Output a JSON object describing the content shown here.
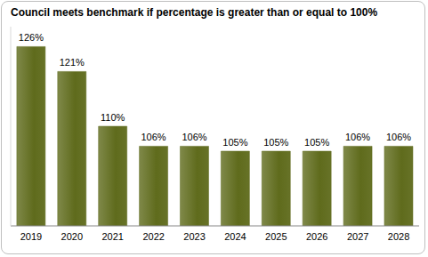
{
  "chart_data": {
    "type": "bar",
    "title": "Council meets benchmark if percentage is greater than or equal to 100%",
    "categories": [
      "2019",
      "2020",
      "2021",
      "2022",
      "2023",
      "2024",
      "2025",
      "2026",
      "2027",
      "2028"
    ],
    "values": [
      126,
      121,
      110,
      106,
      106,
      105,
      105,
      105,
      106,
      106
    ],
    "value_labels": [
      "126%",
      "121%",
      "110%",
      "106%",
      "106%",
      "105%",
      "105%",
      "105%",
      "106%",
      "106%"
    ],
    "color": "#5f6b1c",
    "ylim": [
      90,
      130
    ],
    "data_labels": true,
    "tick_labels": "x",
    "grid": false
  }
}
